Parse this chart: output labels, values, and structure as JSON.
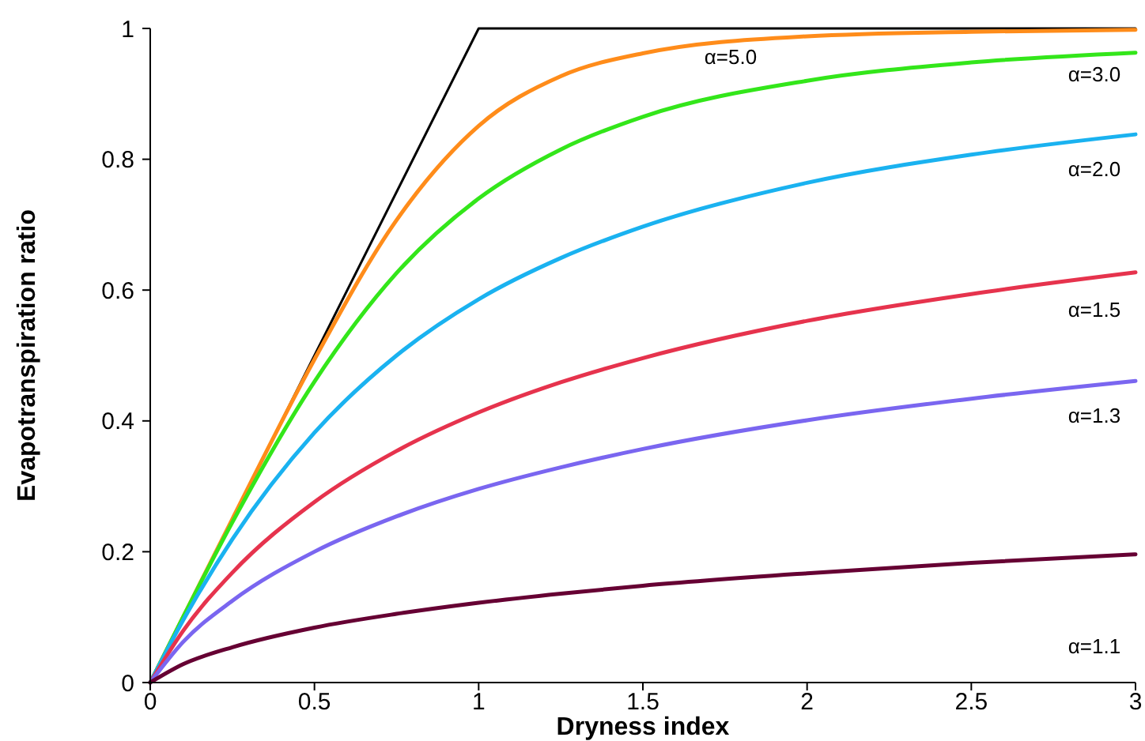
{
  "chart_data": {
    "type": "line",
    "xlabel": "Dryness index",
    "ylabel": "Evapotranspiration ratio",
    "x": [
      0,
      0.1,
      0.25,
      0.5,
      0.75,
      1,
      1.25,
      1.5,
      2,
      2.5,
      3
    ],
    "series": [
      {
        "type": "line",
        "color": "#000000",
        "x": [
          0,
          1,
          3
        ],
        "values": [
          0,
          1,
          1
        ]
      },
      {
        "color": "#ff8c1a",
        "values": [
          0,
          0.1,
          0.25,
          0.494,
          0.707,
          0.851,
          0.927,
          0.962,
          0.988,
          0.995,
          0.998
        ]
      },
      {
        "color": "#33e61a",
        "values": [
          0,
          0.1,
          0.245,
          0.46,
          0.626,
          0.74,
          0.815,
          0.865,
          0.92,
          0.948,
          0.963
        ]
      },
      {
        "color": "#1ab2f0",
        "values": [
          0,
          0.095,
          0.219,
          0.382,
          0.5,
          0.586,
          0.649,
          0.697,
          0.764,
          0.807,
          0.838
        ]
      },
      {
        "color": "#e6334d",
        "values": [
          0,
          0.079,
          0.168,
          0.276,
          0.354,
          0.413,
          0.459,
          0.496,
          0.553,
          0.594,
          0.627
        ]
      },
      {
        "color": "#7a66f0",
        "values": [
          0,
          0.062,
          0.125,
          0.2,
          0.254,
          0.296,
          0.329,
          0.357,
          0.401,
          0.434,
          0.461
        ]
      },
      {
        "color": "#660033",
        "values": [
          0,
          0.028,
          0.054,
          0.084,
          0.105,
          0.122,
          0.136,
          0.148,
          0.167,
          0.183,
          0.196
        ]
      }
    ],
    "xlim": [
      0,
      3
    ],
    "xticks": [
      0,
      0.5,
      1,
      1.5,
      2,
      2.5,
      3
    ],
    "ylim": [
      0,
      1
    ],
    "yticks": [
      0,
      0.2,
      0.4,
      0.6,
      0.8,
      1
    ],
    "grid": false,
    "marker": "none",
    "line_style": "solid",
    "annotations": [
      "α=5.0",
      "α=3.0",
      "α=2.0",
      "α=1.5",
      "α=1.3",
      "α=1.1"
    ]
  }
}
